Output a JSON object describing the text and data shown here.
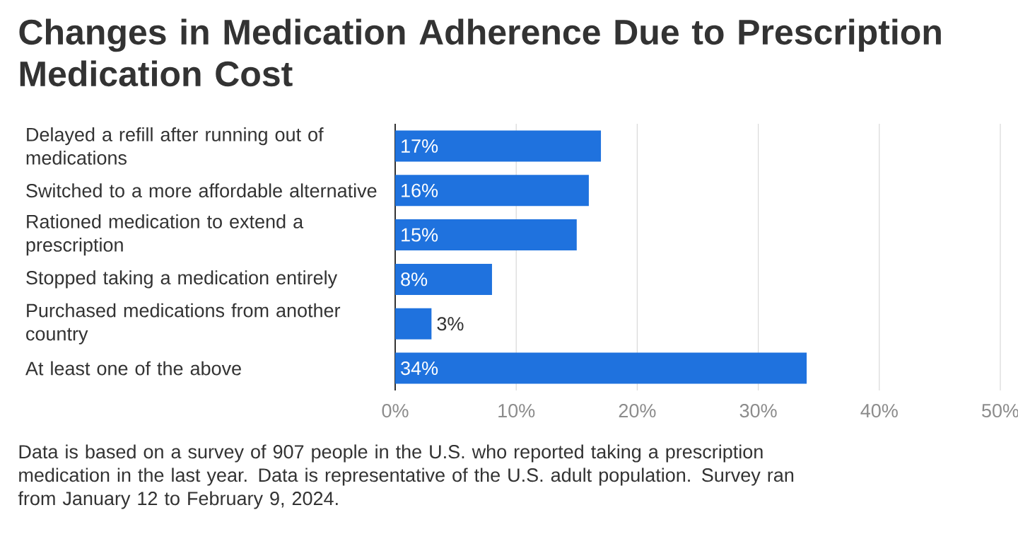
{
  "chart_data": {
    "type": "bar",
    "orientation": "horizontal",
    "title": "Changes in Medication Adherence Due to Prescription Medication Cost",
    "categories": [
      "Delayed a refill after running out of medications",
      "Switched to a more affordable alternative",
      "Rationed medication to extend a prescription",
      "Stopped taking a medication entirely",
      "Purchased medications from another country",
      "At least one of the above"
    ],
    "values": [
      17,
      16,
      15,
      8,
      3,
      34
    ],
    "value_labels": [
      "17%",
      "16%",
      "15%",
      "8%",
      "3%",
      "34%"
    ],
    "color": "#1f72de",
    "xlim": [
      0,
      50
    ],
    "xticks": [
      {
        "value": 0,
        "label": "0%"
      },
      {
        "value": 10,
        "label": "10%"
      },
      {
        "value": 20,
        "label": "20%"
      },
      {
        "value": 30,
        "label": "30%"
      },
      {
        "value": 40,
        "label": "40%"
      },
      {
        "value": 50,
        "label": "50%"
      }
    ],
    "grid": "x",
    "annotations": [
      "Data is based on a survey of 907 people in the U.S. who reported taking a prescription medication in the last year. Data is representative of the U.S. adult population. Survey ran from January 12 to February 9, 2024."
    ]
  }
}
